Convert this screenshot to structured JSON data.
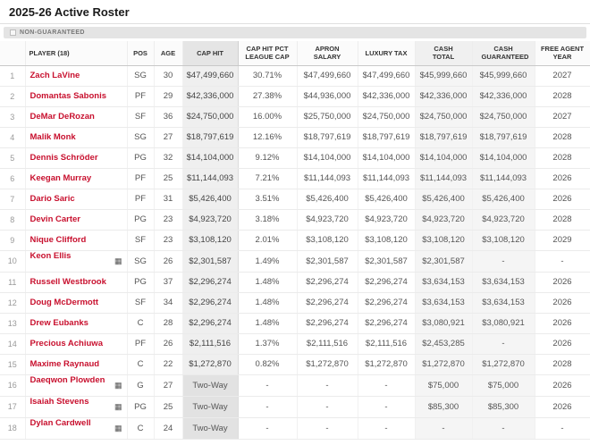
{
  "page": {
    "title": "2025-26 Active Roster",
    "legend_label": "NON-GUARANTEED"
  },
  "colors": {
    "accent": "#c8102e",
    "non_guaranteed_shade": "#e2e2e2",
    "cap_hit_column_shade": "#efefef",
    "cash_column_shade": "#f5f5f5"
  },
  "table": {
    "columns": [
      "PLAYER (18)",
      "POS",
      "AGE",
      "CAP HIT",
      "CAP HIT PCT LEAGUE CAP",
      "APRON SALARY",
      "LUXURY TAX",
      "CASH TOTAL",
      "CASH GUARANTEED",
      "FREE AGENT YEAR"
    ],
    "rows": [
      {
        "num": "1",
        "player": "Zach LaVine",
        "badge": false,
        "pos": "SG",
        "age": "30",
        "cap_hit": "$47,499,660",
        "cap_hit_pct": "30.71%",
        "apron_salary": "$47,499,660",
        "luxury_tax": "$47,499,660",
        "cash_total": "$45,999,660",
        "cash_guaranteed": "$45,999,660",
        "free_agent_year": "2027",
        "two_way": false
      },
      {
        "num": "2",
        "player": "Domantas Sabonis",
        "badge": false,
        "pos": "PF",
        "age": "29",
        "cap_hit": "$42,336,000",
        "cap_hit_pct": "27.38%",
        "apron_salary": "$44,936,000",
        "luxury_tax": "$42,336,000",
        "cash_total": "$42,336,000",
        "cash_guaranteed": "$42,336,000",
        "free_agent_year": "2028",
        "two_way": false
      },
      {
        "num": "3",
        "player": "DeMar DeRozan",
        "badge": false,
        "pos": "SF",
        "age": "36",
        "cap_hit": "$24,750,000",
        "cap_hit_pct": "16.00%",
        "apron_salary": "$25,750,000",
        "luxury_tax": "$24,750,000",
        "cash_total": "$24,750,000",
        "cash_guaranteed": "$24,750,000",
        "free_agent_year": "2027",
        "two_way": false
      },
      {
        "num": "4",
        "player": "Malik Monk",
        "badge": false,
        "pos": "SG",
        "age": "27",
        "cap_hit": "$18,797,619",
        "cap_hit_pct": "12.16%",
        "apron_salary": "$18,797,619",
        "luxury_tax": "$18,797,619",
        "cash_total": "$18,797,619",
        "cash_guaranteed": "$18,797,619",
        "free_agent_year": "2028",
        "two_way": false
      },
      {
        "num": "5",
        "player": "Dennis Schröder",
        "badge": false,
        "pos": "PG",
        "age": "32",
        "cap_hit": "$14,104,000",
        "cap_hit_pct": "9.12%",
        "apron_salary": "$14,104,000",
        "luxury_tax": "$14,104,000",
        "cash_total": "$14,104,000",
        "cash_guaranteed": "$14,104,000",
        "free_agent_year": "2028",
        "two_way": false
      },
      {
        "num": "6",
        "player": "Keegan Murray",
        "badge": false,
        "pos": "PF",
        "age": "25",
        "cap_hit": "$11,144,093",
        "cap_hit_pct": "7.21%",
        "apron_salary": "$11,144,093",
        "luxury_tax": "$11,144,093",
        "cash_total": "$11,144,093",
        "cash_guaranteed": "$11,144,093",
        "free_agent_year": "2026",
        "two_way": false
      },
      {
        "num": "7",
        "player": "Dario Saric",
        "badge": false,
        "pos": "PF",
        "age": "31",
        "cap_hit": "$5,426,400",
        "cap_hit_pct": "3.51%",
        "apron_salary": "$5,426,400",
        "luxury_tax": "$5,426,400",
        "cash_total": "$5,426,400",
        "cash_guaranteed": "$5,426,400",
        "free_agent_year": "2026",
        "two_way": false
      },
      {
        "num": "8",
        "player": "Devin Carter",
        "badge": false,
        "pos": "PG",
        "age": "23",
        "cap_hit": "$4,923,720",
        "cap_hit_pct": "3.18%",
        "apron_salary": "$4,923,720",
        "luxury_tax": "$4,923,720",
        "cash_total": "$4,923,720",
        "cash_guaranteed": "$4,923,720",
        "free_agent_year": "2028",
        "two_way": false
      },
      {
        "num": "9",
        "player": "Nique Clifford",
        "badge": false,
        "pos": "SF",
        "age": "23",
        "cap_hit": "$3,108,120",
        "cap_hit_pct": "2.01%",
        "apron_salary": "$3,108,120",
        "luxury_tax": "$3,108,120",
        "cash_total": "$3,108,120",
        "cash_guaranteed": "$3,108,120",
        "free_agent_year": "2029",
        "two_way": false
      },
      {
        "num": "10",
        "player": "Keon Ellis",
        "badge": true,
        "pos": "SG",
        "age": "26",
        "cap_hit": "$2,301,587",
        "cap_hit_pct": "1.49%",
        "apron_salary": "$2,301,587",
        "luxury_tax": "$2,301,587",
        "cash_total": "$2,301,587",
        "cash_guaranteed": "-",
        "free_agent_year": "-",
        "two_way": false
      },
      {
        "num": "11",
        "player": "Russell Westbrook",
        "badge": false,
        "pos": "PG",
        "age": "37",
        "cap_hit": "$2,296,274",
        "cap_hit_pct": "1.48%",
        "apron_salary": "$2,296,274",
        "luxury_tax": "$2,296,274",
        "cash_total": "$3,634,153",
        "cash_guaranteed": "$3,634,153",
        "free_agent_year": "2026",
        "two_way": false
      },
      {
        "num": "12",
        "player": "Doug McDermott",
        "badge": false,
        "pos": "SF",
        "age": "34",
        "cap_hit": "$2,296,274",
        "cap_hit_pct": "1.48%",
        "apron_salary": "$2,296,274",
        "luxury_tax": "$2,296,274",
        "cash_total": "$3,634,153",
        "cash_guaranteed": "$3,634,153",
        "free_agent_year": "2026",
        "two_way": false
      },
      {
        "num": "13",
        "player": "Drew Eubanks",
        "badge": false,
        "pos": "C",
        "age": "28",
        "cap_hit": "$2,296,274",
        "cap_hit_pct": "1.48%",
        "apron_salary": "$2,296,274",
        "luxury_tax": "$2,296,274",
        "cash_total": "$3,080,921",
        "cash_guaranteed": "$3,080,921",
        "free_agent_year": "2026",
        "two_way": false
      },
      {
        "num": "14",
        "player": "Precious Achiuwa",
        "badge": false,
        "pos": "PF",
        "age": "26",
        "cap_hit": "$2,111,516",
        "cap_hit_pct": "1.37%",
        "apron_salary": "$2,111,516",
        "luxury_tax": "$2,111,516",
        "cash_total": "$2,453,285",
        "cash_guaranteed": "-",
        "free_agent_year": "2026",
        "two_way": false
      },
      {
        "num": "15",
        "player": "Maxime Raynaud",
        "badge": false,
        "pos": "C",
        "age": "22",
        "cap_hit": "$1,272,870",
        "cap_hit_pct": "0.82%",
        "apron_salary": "$1,272,870",
        "luxury_tax": "$1,272,870",
        "cash_total": "$1,272,870",
        "cash_guaranteed": "$1,272,870",
        "free_agent_year": "2028",
        "two_way": false
      },
      {
        "num": "16",
        "player": "Daeqwon Plowden",
        "badge": true,
        "pos": "G",
        "age": "27",
        "cap_hit": "Two-Way",
        "cap_hit_pct": "-",
        "apron_salary": "-",
        "luxury_tax": "-",
        "cash_total": "$75,000",
        "cash_guaranteed": "$75,000",
        "free_agent_year": "2026",
        "two_way": true
      },
      {
        "num": "17",
        "player": "Isaiah Stevens",
        "badge": true,
        "pos": "PG",
        "age": "25",
        "cap_hit": "Two-Way",
        "cap_hit_pct": "-",
        "apron_salary": "-",
        "luxury_tax": "-",
        "cash_total": "$85,300",
        "cash_guaranteed": "$85,300",
        "free_agent_year": "2026",
        "two_way": true
      },
      {
        "num": "18",
        "player": "Dylan Cardwell",
        "badge": true,
        "pos": "C",
        "age": "24",
        "cap_hit": "Two-Way",
        "cap_hit_pct": "-",
        "apron_salary": "-",
        "luxury_tax": "-",
        "cash_total": "-",
        "cash_guaranteed": "-",
        "free_agent_year": "-",
        "two_way": true
      }
    ]
  }
}
